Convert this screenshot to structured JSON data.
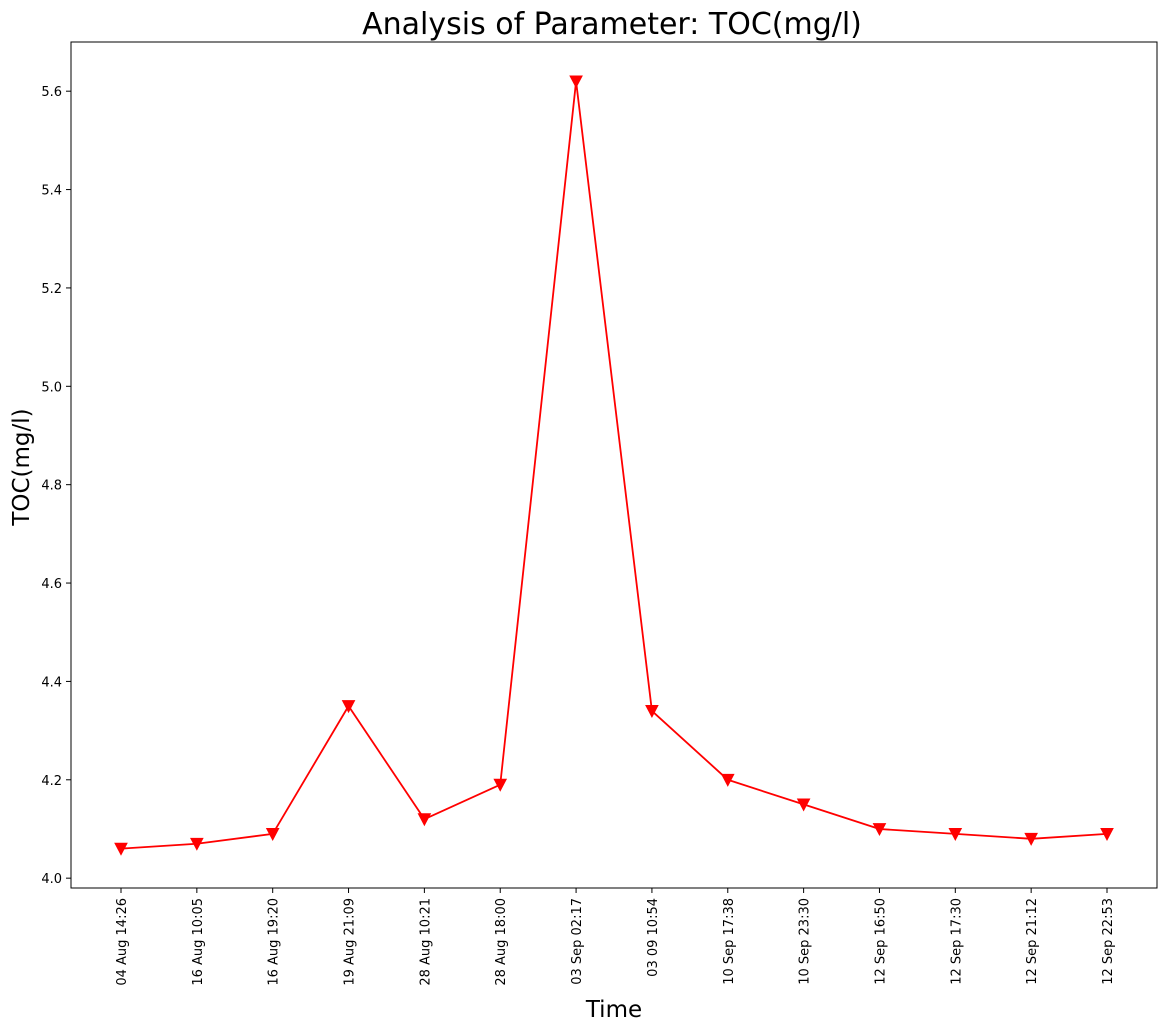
{
  "chart_data": {
    "type": "line",
    "title": "Analysis of Parameter: TOC(mg/l)",
    "xlabel": "Time",
    "ylabel": "TOC(mg/l)",
    "categories": [
      "04 Aug 14:26",
      "16 Aug 10:05",
      "16 Aug 19:20",
      "19 Aug 21:09",
      "28 Aug 10:21",
      "28 Aug 18:00",
      "03 Sep 02:17",
      "03 09 10:54",
      "10 Sep 17:38",
      "10 Sep 23:30",
      "12 Sep 16:50",
      "12 Sep 17:30",
      "12 Sep 21:12",
      "12 Sep 22:53"
    ],
    "series": [
      {
        "values": [
          4.06,
          4.07,
          4.09,
          4.35,
          4.12,
          4.19,
          5.62,
          4.34,
          4.2,
          4.15,
          4.1,
          4.09,
          4.08,
          4.09
        ],
        "color": "#ff0000",
        "marker": "triangle-down"
      }
    ],
    "yticks": [
      4.0,
      4.2,
      4.4,
      4.6,
      4.8,
      5.0,
      5.2,
      5.4,
      5.6
    ],
    "ytick_labels": [
      "4.0",
      "4.2",
      "4.4",
      "4.6",
      "4.8",
      "5.0",
      "5.2",
      "5.4",
      "5.6"
    ],
    "ylim": [
      3.98,
      5.7
    ],
    "grid": false,
    "legend": "none"
  }
}
